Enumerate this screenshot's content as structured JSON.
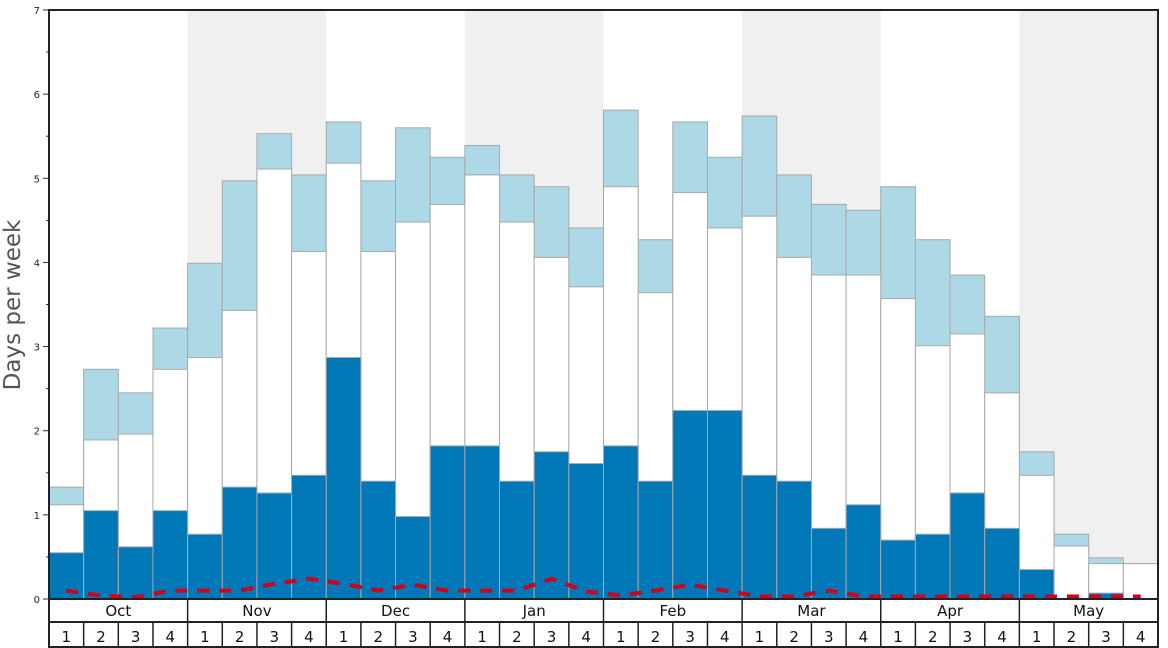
{
  "chart_data": {
    "type": "bar",
    "ylabel": "Days per week",
    "ylim": [
      0,
      7
    ],
    "yticks": [
      0,
      1,
      2,
      3,
      4,
      5,
      6,
      7
    ],
    "months": [
      "Oct",
      "Nov",
      "Dec",
      "Jan",
      "Feb",
      "Mar",
      "Apr",
      "May"
    ],
    "weeks": [
      "1",
      "2",
      "3",
      "4"
    ],
    "series": [
      {
        "name": "",
        "color": "#0077b6",
        "values": [
          0.55,
          1.05,
          0.62,
          1.05,
          0.77,
          1.33,
          1.26,
          1.47,
          2.87,
          1.4,
          0.98,
          1.82,
          1.82,
          1.4,
          1.75,
          1.61,
          1.82,
          1.4,
          2.24,
          2.24,
          1.47,
          1.4,
          0.84,
          1.12,
          0.7,
          0.77,
          1.26,
          0.84,
          0.35,
          0.0,
          0.07,
          0.0
        ]
      },
      {
        "name": "",
        "color": "#ffffff",
        "values": [
          1.12,
          1.89,
          1.96,
          2.73,
          2.87,
          3.43,
          5.11,
          4.13,
          5.18,
          4.13,
          4.48,
          4.69,
          5.04,
          4.48,
          4.06,
          3.71,
          4.9,
          3.64,
          4.83,
          4.41,
          4.55,
          4.06,
          3.85,
          3.85,
          3.57,
          3.01,
          3.15,
          2.45,
          1.47,
          0.63,
          0.42,
          0.42
        ]
      },
      {
        "name": "",
        "color": "#add8e6",
        "values": [
          1.33,
          2.73,
          2.45,
          3.22,
          3.99,
          4.97,
          5.53,
          5.04,
          5.67,
          4.97,
          5.6,
          5.25,
          5.39,
          5.04,
          4.9,
          4.41,
          5.81,
          4.27,
          5.67,
          5.25,
          5.74,
          5.04,
          4.69,
          4.62,
          4.9,
          4.27,
          3.85,
          3.36,
          1.75,
          0.77,
          0.49,
          0.42
        ]
      },
      {
        "name": "",
        "color": "#d0021b",
        "line": true,
        "values": [
          0.1,
          0.04,
          0.02,
          0.1,
          0.1,
          0.1,
          0.18,
          0.24,
          0.18,
          0.1,
          0.17,
          0.1,
          0.1,
          0.1,
          0.24,
          0.09,
          0.04,
          0.1,
          0.17,
          0.1,
          0.03,
          0.03,
          0.1,
          0.03,
          0.03,
          0.03,
          0.03,
          0.03,
          0.03,
          0.03,
          0.03,
          0.03
        ]
      }
    ],
    "shaded_months": [
      "Nov",
      "Jan",
      "Mar",
      "May"
    ],
    "shade_color": "#f0f0f1"
  }
}
